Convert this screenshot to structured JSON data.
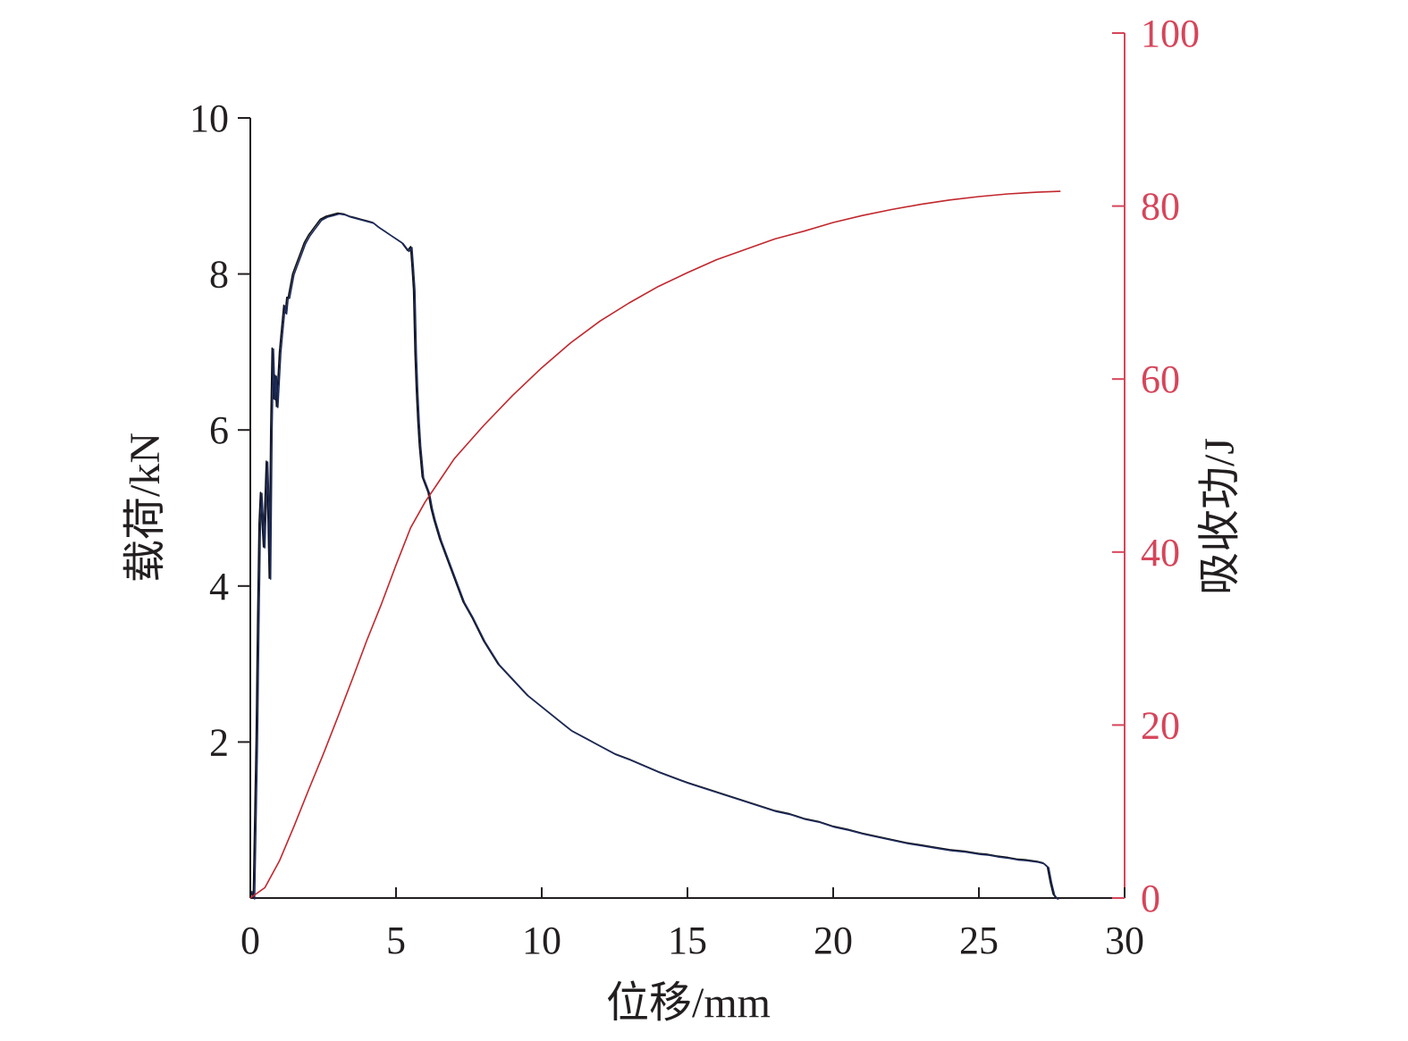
{
  "chart_data": {
    "type": "line",
    "xlabel": "位移/mm",
    "ylabel_left": "载荷/kN",
    "ylabel_right": "吸收功/J",
    "xlim": [
      0,
      30
    ],
    "ylim_left": [
      0,
      10
    ],
    "ylim_right": [
      0,
      100
    ],
    "x_ticks": [
      "0",
      "5",
      "10",
      "15",
      "20",
      "25",
      "30"
    ],
    "y_left_ticks": [
      "2",
      "4",
      "6",
      "8",
      "10"
    ],
    "y_right_ticks": [
      "0",
      "20",
      "40",
      "60",
      "80",
      "100"
    ],
    "grid": false,
    "legend": "none",
    "colors": {
      "axis": "#231f20",
      "load": "#1c2a5a",
      "load_dark": "#111111",
      "energy": "#c1272d",
      "right_axis": "#d6455a"
    },
    "series": [
      {
        "axis": "left",
        "x": [
          0.0,
          0.1,
          0.2,
          0.25,
          0.3,
          0.35,
          0.45,
          0.55,
          0.6,
          0.65,
          0.7,
          0.75,
          0.8,
          0.85,
          0.9,
          1.0,
          1.05,
          1.15,
          1.2,
          1.25,
          1.3,
          1.45,
          1.55,
          1.65,
          1.75,
          1.85,
          2.0,
          2.2,
          2.4,
          2.6,
          2.8,
          3.0,
          3.2,
          3.4,
          3.6,
          3.8,
          4.0,
          4.2,
          4.4,
          4.6,
          4.8,
          5.0,
          5.2,
          5.4,
          5.5,
          5.55,
          5.6,
          5.65,
          5.7,
          5.75,
          5.8,
          5.85,
          5.9,
          6.0,
          6.1,
          6.2,
          6.3,
          6.5,
          6.7,
          7.0,
          7.3,
          7.6,
          8.0,
          8.5,
          9.0,
          9.5,
          10.0,
          10.5,
          11.0,
          11.5,
          12.0,
          12.5,
          13.0,
          13.5,
          14.0,
          14.5,
          15.0,
          15.5,
          16.0,
          16.5,
          17.0,
          17.5,
          18.0,
          18.5,
          19.0,
          19.5,
          20.0,
          20.5,
          21.0,
          21.5,
          22.0,
          22.5,
          23.0,
          23.5,
          24.0,
          24.5,
          25.0,
          25.3,
          25.6,
          26.0,
          26.3,
          26.6,
          27.0,
          27.2,
          27.35,
          27.45,
          27.55,
          27.65,
          27.7
        ],
        "y": [
          0.1,
          0.0,
          2.0,
          3.5,
          4.8,
          5.2,
          4.5,
          5.6,
          5.0,
          4.1,
          6.0,
          7.05,
          6.4,
          6.7,
          6.3,
          7.0,
          7.2,
          7.6,
          7.5,
          7.7,
          7.7,
          8.0,
          8.1,
          8.2,
          8.3,
          8.4,
          8.5,
          8.6,
          8.7,
          8.74,
          8.76,
          8.78,
          8.77,
          8.74,
          8.72,
          8.7,
          8.68,
          8.66,
          8.6,
          8.55,
          8.5,
          8.45,
          8.4,
          8.3,
          8.35,
          8.1,
          7.8,
          7.0,
          6.5,
          6.1,
          5.8,
          5.6,
          5.4,
          5.3,
          5.2,
          5.0,
          4.85,
          4.6,
          4.4,
          4.1,
          3.8,
          3.6,
          3.3,
          3.0,
          2.8,
          2.6,
          2.45,
          2.3,
          2.15,
          2.05,
          1.95,
          1.85,
          1.78,
          1.7,
          1.62,
          1.55,
          1.48,
          1.42,
          1.36,
          1.3,
          1.24,
          1.18,
          1.12,
          1.08,
          1.02,
          0.98,
          0.92,
          0.88,
          0.83,
          0.79,
          0.75,
          0.71,
          0.68,
          0.65,
          0.62,
          0.6,
          0.57,
          0.56,
          0.54,
          0.52,
          0.5,
          0.49,
          0.47,
          0.45,
          0.4,
          0.2,
          0.05,
          0.0,
          0.0
        ]
      },
      {
        "axis": "right",
        "x": [
          0.0,
          0.5,
          1.0,
          1.5,
          2.0,
          2.5,
          3.0,
          3.5,
          4.0,
          4.5,
          5.0,
          5.5,
          6.0,
          6.5,
          7.0,
          7.5,
          8.0,
          9.0,
          10.0,
          11.0,
          12.0,
          13.0,
          14.0,
          15.0,
          16.0,
          17.0,
          18.0,
          19.0,
          20.0,
          21.0,
          22.0,
          23.0,
          24.0,
          25.0,
          26.0,
          27.0,
          27.8
        ],
        "y": [
          0.0,
          1.2,
          4.3,
          8.3,
          12.5,
          16.6,
          20.9,
          25.3,
          29.8,
          34.0,
          38.5,
          42.8,
          45.8,
          48.3,
          50.8,
          52.7,
          54.6,
          58.1,
          61.3,
          64.2,
          66.7,
          68.8,
          70.7,
          72.3,
          73.8,
          75.0,
          76.2,
          77.1,
          78.1,
          78.9,
          79.6,
          80.2,
          80.7,
          81.1,
          81.4,
          81.6,
          81.7
        ]
      }
    ]
  }
}
